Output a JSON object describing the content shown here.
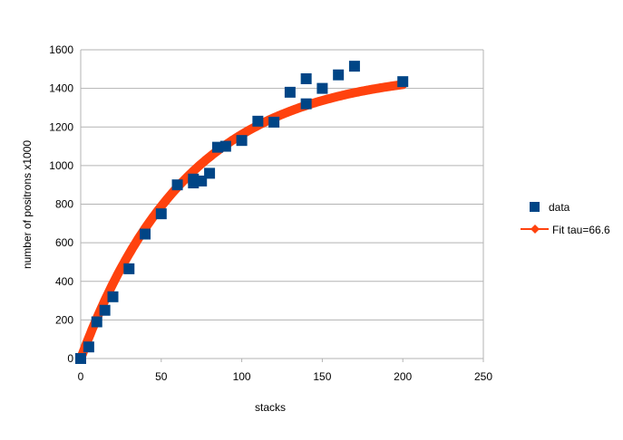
{
  "chart_data": {
    "type": "scatter",
    "title": "",
    "xlabel": "stacks",
    "ylabel": "number of positrons x1000",
    "xlim": [
      0,
      250
    ],
    "ylim": [
      0,
      1600
    ],
    "xticks": [
      0,
      50,
      100,
      150,
      200,
      250
    ],
    "yticks": [
      0,
      200,
      400,
      600,
      800,
      1000,
      1200,
      1400,
      1600
    ],
    "grid": "horizontal",
    "legend_position": "right",
    "series": [
      {
        "name": "data",
        "kind": "points",
        "color": "#004586",
        "x": [
          0,
          5,
          10,
          15,
          20,
          30,
          40,
          50,
          60,
          70,
          70,
          75,
          80,
          85,
          90,
          100,
          110,
          120,
          130,
          140,
          140,
          150,
          160,
          170,
          200
        ],
        "y": [
          0,
          60,
          190,
          250,
          320,
          465,
          645,
          750,
          900,
          910,
          930,
          920,
          960,
          1095,
          1100,
          1130,
          1230,
          1225,
          1380,
          1320,
          1450,
          1400,
          1470,
          1515,
          1435
        ]
      },
      {
        "name": "Fit tau=66.6",
        "kind": "fit-line",
        "color": "#ff420e",
        "model": "A*(1-exp(-x/tau))",
        "tau": 66.6,
        "A": 1494,
        "x_range": [
          0,
          200
        ]
      }
    ]
  }
}
